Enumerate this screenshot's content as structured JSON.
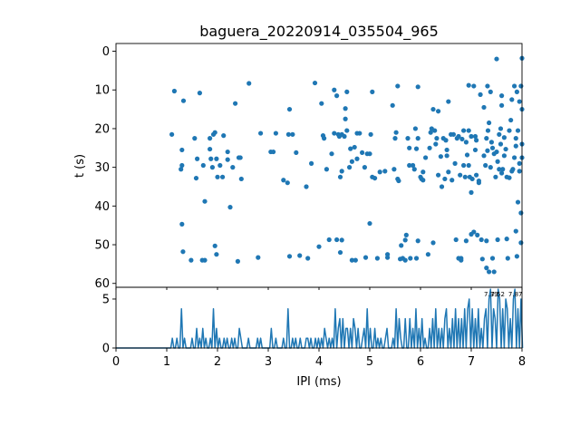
{
  "chart_data": [
    {
      "id": "raster",
      "type": "scatter",
      "title": "baguera_20220914_035504_965",
      "xlabel": "",
      "ylabel": "t (s)",
      "xlim": [
        0,
        8
      ],
      "ylim": [
        61,
        -2
      ],
      "y_inverted": true,
      "yticks": [
        0,
        10,
        20,
        30,
        40,
        50,
        60
      ],
      "color": "#1f77b4",
      "points": [
        [
          1.1,
          21.5
        ],
        [
          1.15,
          10.3
        ],
        [
          1.28,
          30.5
        ],
        [
          1.3,
          29.5
        ],
        [
          1.3,
          25.5
        ],
        [
          1.3,
          44.7
        ],
        [
          1.32,
          51.8
        ],
        [
          1.33,
          12.8
        ],
        [
          1.48,
          54
        ],
        [
          1.55,
          22.5
        ],
        [
          1.58,
          32.8
        ],
        [
          1.6,
          27.8
        ],
        [
          1.65,
          10.8
        ],
        [
          1.7,
          54
        ],
        [
          1.72,
          29.5
        ],
        [
          1.75,
          54
        ],
        [
          1.75,
          38.8
        ],
        [
          1.85,
          22.5
        ],
        [
          1.85,
          25.3
        ],
        [
          1.87,
          27.8
        ],
        [
          1.9,
          30
        ],
        [
          1.92,
          21.5
        ],
        [
          1.95,
          21
        ],
        [
          1.95,
          50.3
        ],
        [
          1.98,
          27.8
        ],
        [
          1.98,
          52.5
        ],
        [
          2.0,
          32.5
        ],
        [
          2.05,
          29.5
        ],
        [
          2.1,
          32.5
        ],
        [
          2.12,
          21.8
        ],
        [
          2.2,
          26
        ],
        [
          2.2,
          28
        ],
        [
          2.25,
          40.3
        ],
        [
          2.3,
          30
        ],
        [
          2.35,
          13.5
        ],
        [
          2.42,
          27.5
        ],
        [
          2.45,
          27.5
        ],
        [
          2.47,
          33
        ],
        [
          2.4,
          54.3
        ],
        [
          2.62,
          8.3
        ],
        [
          2.8,
          53.3
        ],
        [
          2.85,
          21.2
        ],
        [
          3.05,
          26
        ],
        [
          3.1,
          26
        ],
        [
          3.15,
          21.2
        ],
        [
          3.3,
          33.3
        ],
        [
          3.38,
          34
        ],
        [
          3.4,
          21.5
        ],
        [
          3.42,
          15
        ],
        [
          3.42,
          53
        ],
        [
          3.48,
          21.5
        ],
        [
          3.55,
          26.2
        ],
        [
          3.62,
          52.8
        ],
        [
          3.75,
          35
        ],
        [
          3.78,
          53.5
        ],
        [
          3.85,
          29
        ],
        [
          3.92,
          8.2
        ],
        [
          4.0,
          50.5
        ],
        [
          4.05,
          13.5
        ],
        [
          4.08,
          21.8
        ],
        [
          4.1,
          22.5
        ],
        [
          4.15,
          30.5
        ],
        [
          4.2,
          48.7
        ],
        [
          4.25,
          26.5
        ],
        [
          4.3,
          10
        ],
        [
          4.3,
          21.2
        ],
        [
          4.35,
          11.5
        ],
        [
          4.35,
          48.7
        ],
        [
          4.38,
          21.5
        ],
        [
          4.4,
          22
        ],
        [
          4.42,
          32.5
        ],
        [
          4.42,
          52
        ],
        [
          4.45,
          48.8
        ],
        [
          4.45,
          31
        ],
        [
          4.45,
          21.5
        ],
        [
          4.5,
          22
        ],
        [
          4.52,
          14.8
        ],
        [
          4.52,
          17.5
        ],
        [
          4.55,
          10.5
        ],
        [
          4.55,
          20.5
        ],
        [
          4.6,
          30
        ],
        [
          4.62,
          25.2
        ],
        [
          4.65,
          28.5
        ],
        [
          4.65,
          54
        ],
        [
          4.7,
          24.8
        ],
        [
          4.72,
          54
        ],
        [
          4.75,
          27.8
        ],
        [
          4.75,
          21.2
        ],
        [
          4.8,
          21.2
        ],
        [
          4.85,
          26.2
        ],
        [
          4.9,
          30
        ],
        [
          4.92,
          53.3
        ],
        [
          4.95,
          26.5
        ],
        [
          5.0,
          26.5
        ],
        [
          5.0,
          44.5
        ],
        [
          5.02,
          21.5
        ],
        [
          5.05,
          10.5
        ],
        [
          5.05,
          32.5
        ],
        [
          5.1,
          32.8
        ],
        [
          5.15,
          53.5
        ],
        [
          5.2,
          31.2
        ],
        [
          5.3,
          31
        ],
        [
          5.35,
          52.5
        ],
        [
          5.35,
          53.3
        ],
        [
          5.45,
          14
        ],
        [
          5.48,
          30.5
        ],
        [
          5.5,
          22.5
        ],
        [
          5.52,
          21
        ],
        [
          5.55,
          9
        ],
        [
          5.55,
          33
        ],
        [
          5.57,
          33.5
        ],
        [
          5.6,
          53.7
        ],
        [
          5.62,
          50.2
        ],
        [
          5.65,
          53.5
        ],
        [
          5.7,
          48.8
        ],
        [
          5.7,
          54
        ],
        [
          5.72,
          47.5
        ],
        [
          5.75,
          22.5
        ],
        [
          5.78,
          25
        ],
        [
          5.78,
          29.5
        ],
        [
          5.8,
          53.5
        ],
        [
          5.85,
          29.5
        ],
        [
          5.88,
          30.5
        ],
        [
          5.9,
          20
        ],
        [
          5.92,
          25.2
        ],
        [
          5.92,
          53.5
        ],
        [
          5.95,
          9.2
        ],
        [
          5.95,
          22.5
        ],
        [
          5.95,
          49
        ],
        [
          6.0,
          32.5
        ],
        [
          6.02,
          33
        ],
        [
          6.05,
          33.3
        ],
        [
          6.05,
          31.2
        ],
        [
          6.1,
          27.5
        ],
        [
          6.15,
          52.5
        ],
        [
          6.18,
          25
        ],
        [
          6.2,
          21
        ],
        [
          6.22,
          20
        ],
        [
          6.25,
          15
        ],
        [
          6.25,
          49.5
        ],
        [
          6.28,
          20.5
        ],
        [
          6.3,
          24
        ],
        [
          6.32,
          22.5
        ],
        [
          6.35,
          15.5
        ],
        [
          6.35,
          32
        ],
        [
          6.4,
          27.2
        ],
        [
          6.42,
          35
        ],
        [
          6.45,
          22.5
        ],
        [
          6.48,
          33
        ],
        [
          6.5,
          23
        ],
        [
          6.52,
          27
        ],
        [
          6.52,
          25.5
        ],
        [
          6.55,
          31.2
        ],
        [
          6.55,
          13
        ],
        [
          6.6,
          21.5
        ],
        [
          6.62,
          33.3
        ],
        [
          6.65,
          21.5
        ],
        [
          6.68,
          29
        ],
        [
          6.7,
          48.7
        ],
        [
          6.72,
          22.5
        ],
        [
          6.75,
          22
        ],
        [
          6.75,
          53.5
        ],
        [
          6.78,
          32
        ],
        [
          6.8,
          53.5
        ],
        [
          6.8,
          54
        ],
        [
          6.82,
          22.7
        ],
        [
          6.85,
          20.5
        ],
        [
          6.85,
          29.5
        ],
        [
          6.88,
          32.5
        ],
        [
          6.9,
          49
        ],
        [
          6.9,
          23.5
        ],
        [
          6.92,
          26.8
        ],
        [
          6.95,
          8.8
        ],
        [
          6.95,
          20.5
        ],
        [
          6.95,
          29.5
        ],
        [
          6.97,
          32.5
        ],
        [
          7.0,
          22
        ],
        [
          7.0,
          36.5
        ],
        [
          7.0,
          47.3
        ],
        [
          7.02,
          33
        ],
        [
          7.05,
          9
        ],
        [
          7.05,
          46.7
        ],
        [
          7.08,
          22
        ],
        [
          7.08,
          25.5
        ],
        [
          7.1,
          23
        ],
        [
          7.1,
          32
        ],
        [
          7.12,
          47.5
        ],
        [
          7.15,
          33.5
        ],
        [
          7.15,
          34
        ],
        [
          7.18,
          11.2
        ],
        [
          7.2,
          48.7
        ],
        [
          7.22,
          53.7
        ],
        [
          7.25,
          14.5
        ],
        [
          7.25,
          27
        ],
        [
          7.28,
          29.5
        ],
        [
          7.3,
          22.5
        ],
        [
          7.3,
          49
        ],
        [
          7.3,
          56
        ],
        [
          7.32,
          9
        ],
        [
          7.32,
          25.7
        ],
        [
          7.33,
          20.5
        ],
        [
          7.35,
          18.5
        ],
        [
          7.35,
          57
        ],
        [
          7.38,
          10.5
        ],
        [
          7.38,
          30
        ],
        [
          7.4,
          23.5
        ],
        [
          7.42,
          25
        ],
        [
          7.42,
          53.5
        ],
        [
          7.45,
          57
        ],
        [
          7.45,
          26.5
        ],
        [
          7.48,
          32.5
        ],
        [
          7.5,
          2
        ],
        [
          7.5,
          26
        ],
        [
          7.52,
          28.5
        ],
        [
          7.52,
          48.7
        ],
        [
          7.55,
          21.5
        ],
        [
          7.55,
          30.5
        ],
        [
          7.58,
          20
        ],
        [
          7.58,
          24
        ],
        [
          7.6,
          11.5
        ],
        [
          7.6,
          14
        ],
        [
          7.6,
          31.5
        ],
        [
          7.62,
          30.5
        ],
        [
          7.65,
          27
        ],
        [
          7.65,
          22.3
        ],
        [
          7.68,
          25.3
        ],
        [
          7.7,
          32.5
        ],
        [
          7.7,
          48.5
        ],
        [
          7.72,
          53.5
        ],
        [
          7.75,
          20.5
        ],
        [
          7.75,
          32.7
        ],
        [
          7.78,
          17.8
        ],
        [
          7.8,
          12.5
        ],
        [
          7.8,
          31
        ],
        [
          7.82,
          30.5
        ],
        [
          7.85,
          27.5
        ],
        [
          7.85,
          9
        ],
        [
          7.88,
          24.5
        ],
        [
          7.88,
          22.5
        ],
        [
          7.88,
          46.5
        ],
        [
          7.9,
          53
        ],
        [
          7.9,
          10.5
        ],
        [
          7.92,
          39
        ],
        [
          7.92,
          20.5
        ],
        [
          7.95,
          13
        ],
        [
          7.95,
          31
        ],
        [
          7.95,
          29
        ],
        [
          7.98,
          9
        ],
        [
          7.98,
          49.5
        ],
        [
          7.98,
          41.8
        ],
        [
          8.0,
          1.8
        ],
        [
          8.0,
          24
        ],
        [
          8.0,
          27.5
        ],
        [
          8.0,
          15
        ]
      ]
    },
    {
      "id": "histogram",
      "type": "line",
      "xlabel": "IPI (ms)",
      "ylabel": "",
      "xlim": [
        0,
        8
      ],
      "ylim": [
        0,
        6.2
      ],
      "xticks": [
        0,
        1,
        2,
        3,
        4,
        5,
        6,
        7,
        8
      ],
      "yticks": [
        0,
        5
      ],
      "color": "#1f77b4",
      "annotations": [
        "7.39",
        "7.52",
        "7.87"
      ],
      "bins": [
        [
          1.1,
          1
        ],
        [
          1.2,
          1
        ],
        [
          1.28,
          4
        ],
        [
          1.34,
          1
        ],
        [
          1.5,
          1
        ],
        [
          1.58,
          2
        ],
        [
          1.64,
          1
        ],
        [
          1.72,
          2
        ],
        [
          1.78,
          1
        ],
        [
          1.85,
          1
        ],
        [
          1.93,
          4
        ],
        [
          1.98,
          2
        ],
        [
          2.05,
          1
        ],
        [
          2.12,
          1
        ],
        [
          2.2,
          1
        ],
        [
          2.27,
          1
        ],
        [
          2.35,
          1
        ],
        [
          2.42,
          2
        ],
        [
          2.47,
          1
        ],
        [
          2.62,
          1
        ],
        [
          2.8,
          1
        ],
        [
          2.85,
          1
        ],
        [
          3.05,
          2
        ],
        [
          3.15,
          1
        ],
        [
          3.3,
          1
        ],
        [
          3.4,
          4
        ],
        [
          3.48,
          1
        ],
        [
          3.55,
          1
        ],
        [
          3.62,
          1
        ],
        [
          3.75,
          1
        ],
        [
          3.78,
          1
        ],
        [
          3.85,
          1
        ],
        [
          3.92,
          1
        ],
        [
          4.0,
          1
        ],
        [
          4.05,
          1
        ],
        [
          4.1,
          2
        ],
        [
          4.15,
          1
        ],
        [
          4.2,
          1
        ],
        [
          4.25,
          1
        ],
        [
          4.32,
          4
        ],
        [
          4.38,
          2
        ],
        [
          4.42,
          3
        ],
        [
          4.47,
          3
        ],
        [
          4.52,
          2
        ],
        [
          4.57,
          2
        ],
        [
          4.62,
          2
        ],
        [
          4.67,
          3
        ],
        [
          4.72,
          2
        ],
        [
          4.78,
          2
        ],
        [
          4.85,
          1
        ],
        [
          4.9,
          2
        ],
        [
          4.96,
          4
        ],
        [
          5.02,
          2
        ],
        [
          5.1,
          2
        ],
        [
          5.15,
          1
        ],
        [
          5.22,
          1
        ],
        [
          5.3,
          1
        ],
        [
          5.35,
          2
        ],
        [
          5.45,
          1
        ],
        [
          5.52,
          4
        ],
        [
          5.58,
          3
        ],
        [
          5.62,
          1
        ],
        [
          5.7,
          3
        ],
        [
          5.78,
          3
        ],
        [
          5.85,
          2
        ],
        [
          5.92,
          4
        ],
        [
          5.98,
          2
        ],
        [
          6.04,
          3
        ],
        [
          6.1,
          1
        ],
        [
          6.18,
          2
        ],
        [
          6.24,
          3
        ],
        [
          6.3,
          4
        ],
        [
          6.36,
          2
        ],
        [
          6.42,
          2
        ],
        [
          6.47,
          3
        ],
        [
          6.52,
          4
        ],
        [
          6.58,
          2
        ],
        [
          6.64,
          3
        ],
        [
          6.7,
          4
        ],
        [
          6.75,
          3
        ],
        [
          6.8,
          3
        ],
        [
          6.86,
          4
        ],
        [
          6.92,
          4
        ],
        [
          6.97,
          5
        ],
        [
          7.02,
          4
        ],
        [
          7.08,
          3
        ],
        [
          7.14,
          4
        ],
        [
          7.2,
          2
        ],
        [
          7.25,
          3
        ],
        [
          7.3,
          4
        ],
        [
          7.35,
          5
        ],
        [
          7.39,
          6
        ],
        [
          7.44,
          4
        ],
        [
          7.48,
          3
        ],
        [
          7.52,
          6
        ],
        [
          7.57,
          5
        ],
        [
          7.62,
          4
        ],
        [
          7.67,
          5
        ],
        [
          7.72,
          4
        ],
        [
          7.77,
          3
        ],
        [
          7.82,
          5
        ],
        [
          7.87,
          6
        ],
        [
          7.92,
          4
        ],
        [
          7.97,
          5
        ]
      ]
    }
  ]
}
